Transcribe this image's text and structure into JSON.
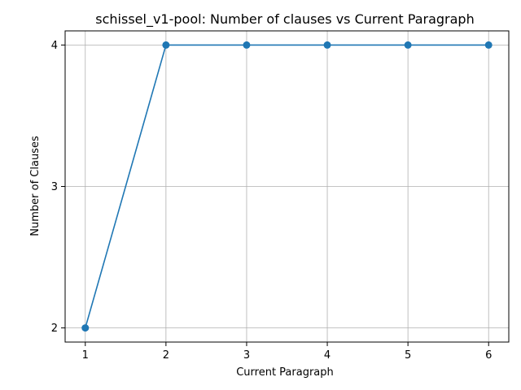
{
  "chart_data": {
    "type": "line",
    "title": "schissel_v1-pool: Number of clauses vs Current Paragraph",
    "xlabel": "Current Paragraph",
    "ylabel": "Number of Clauses",
    "x": [
      1,
      2,
      3,
      4,
      5,
      6
    ],
    "series": [
      {
        "values": [
          2,
          4,
          4,
          4,
          4,
          4
        ],
        "color": "#1f77b4",
        "marker": "circle"
      }
    ],
    "xticks": [
      1,
      2,
      3,
      4,
      5,
      6
    ],
    "yticks": [
      2,
      3,
      4
    ],
    "xlim": [
      0.75,
      6.25
    ],
    "ylim": [
      1.9,
      4.1
    ],
    "grid": true,
    "legend": "none"
  }
}
